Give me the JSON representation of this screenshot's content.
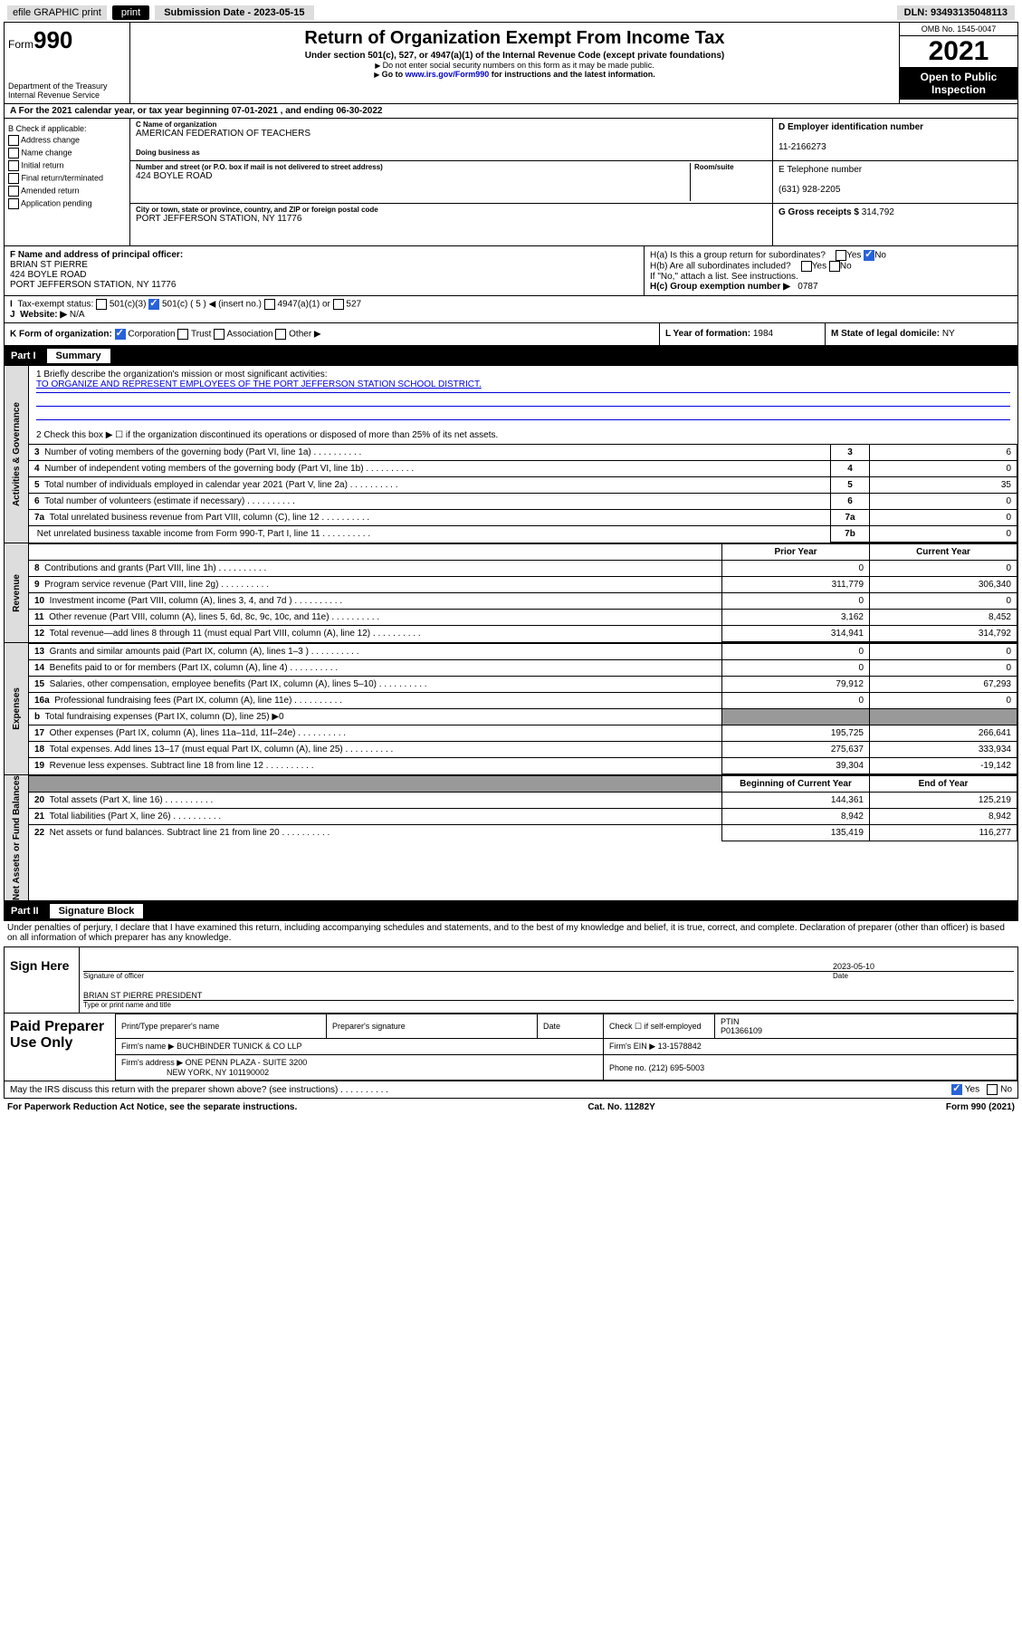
{
  "top": {
    "efile": "efile GRAPHIC print",
    "submission_label": "Submission Date - 2023-05-15",
    "dln": "DLN: 93493135048113"
  },
  "header": {
    "form_prefix": "Form",
    "form_num": "990",
    "dept": "Department of the Treasury Internal Revenue Service",
    "title": "Return of Organization Exempt From Income Tax",
    "sub": "Under section 501(c), 527, or 4947(a)(1) of the Internal Revenue Code (except private foundations)",
    "note1": "Do not enter social security numbers on this form as it may be made public.",
    "note2_pre": "Go to ",
    "note2_link": "www.irs.gov/Form990",
    "note2_post": " for instructions and the latest information.",
    "omb": "OMB No. 1545-0047",
    "year": "2021",
    "open": "Open to Public Inspection"
  },
  "row_a": "A For the 2021 calendar year, or tax year beginning 07-01-2021  , and ending 06-30-2022",
  "box_b": {
    "title": "B Check if applicable:",
    "items": [
      "Address change",
      "Name change",
      "Initial return",
      "Final return/terminated",
      "Amended return",
      "Application pending"
    ]
  },
  "box_c": {
    "name_label": "C Name of organization",
    "name": "AMERICAN FEDERATION OF TEACHERS",
    "dba_label": "Doing business as",
    "dba": "",
    "street_label": "Number and street (or P.O. box if mail is not delivered to street address)",
    "room_label": "Room/suite",
    "street": "424 BOYLE ROAD",
    "city_label": "City or town, state or province, country, and ZIP or foreign postal code",
    "city": "PORT JEFFERSON STATION, NY  11776"
  },
  "box_d": {
    "label": "D Employer identification number",
    "value": "11-2166273"
  },
  "box_e": {
    "label": "E Telephone number",
    "value": "(631) 928-2205"
  },
  "box_g": {
    "label": "G Gross receipts $",
    "value": "314,792"
  },
  "box_f": {
    "label": "F  Name and address of principal officer:",
    "name": "BRIAN ST PIERRE",
    "addr1": "424 BOYLE ROAD",
    "addr2": "PORT JEFFERSON STATION, NY  11776"
  },
  "box_h": {
    "ha": "H(a)  Is this a group return for subordinates?",
    "hb": "H(b)  Are all subordinates included?",
    "hnote": "If \"No,\" attach a list. See instructions.",
    "hc_label": "H(c)  Group exemption number ▶",
    "hc_val": "0787"
  },
  "row_i": {
    "label": "Tax-exempt status:",
    "opts": [
      "501(c)(3)",
      "501(c) ( 5 ) ◀ (insert no.)",
      "4947(a)(1) or",
      "527"
    ]
  },
  "row_j": {
    "label": "Website: ▶",
    "val": "N/A"
  },
  "row_k": {
    "label": "K Form of organization:",
    "opts": [
      "Corporation",
      "Trust",
      "Association",
      "Other ▶"
    ]
  },
  "row_l": {
    "label": "L Year of formation:",
    "val": "1984"
  },
  "row_m": {
    "label": "M State of legal domicile:",
    "val": "NY"
  },
  "part1": {
    "header_num": "Part I",
    "header_title": "Summary",
    "q1": "1  Briefly describe the organization's mission or most significant activities:",
    "mission": "TO ORGANIZE AND REPRESENT EMPLOYEES OF THE PORT JEFFERSON STATION SCHOOL DISTRICT.",
    "q2": "2    Check this box ▶ ☐  if the organization discontinued its operations or disposed of more than 25% of its net assets."
  },
  "governance_lines": [
    {
      "n": "3",
      "t": "Number of voting members of the governing body (Part VI, line 1a)",
      "c": "3",
      "v": "6"
    },
    {
      "n": "4",
      "t": "Number of independent voting members of the governing body (Part VI, line 1b)",
      "c": "4",
      "v": "0"
    },
    {
      "n": "5",
      "t": "Total number of individuals employed in calendar year 2021 (Part V, line 2a)",
      "c": "5",
      "v": "35"
    },
    {
      "n": "6",
      "t": "Total number of volunteers (estimate if necessary)",
      "c": "6",
      "v": "0"
    },
    {
      "n": "7a",
      "t": "Total unrelated business revenue from Part VIII, column (C), line 12",
      "c": "7a",
      "v": "0"
    },
    {
      "n": "",
      "t": "Net unrelated business taxable income from Form 990-T, Part I, line 11",
      "c": "7b",
      "v": "0"
    }
  ],
  "two_col_headers": {
    "prior": "Prior Year",
    "current": "Current Year",
    "boy": "Beginning of Current Year",
    "eoy": "End of Year"
  },
  "revenue_lines": [
    {
      "n": "8",
      "t": "Contributions and grants (Part VIII, line 1h)",
      "p": "0",
      "c": "0"
    },
    {
      "n": "9",
      "t": "Program service revenue (Part VIII, line 2g)",
      "p": "311,779",
      "c": "306,340"
    },
    {
      "n": "10",
      "t": "Investment income (Part VIII, column (A), lines 3, 4, and 7d )",
      "p": "0",
      "c": "0"
    },
    {
      "n": "11",
      "t": "Other revenue (Part VIII, column (A), lines 5, 6d, 8c, 9c, 10c, and 11e)",
      "p": "3,162",
      "c": "8,452"
    },
    {
      "n": "12",
      "t": "Total revenue—add lines 8 through 11 (must equal Part VIII, column (A), line 12)",
      "p": "314,941",
      "c": "314,792"
    }
  ],
  "expense_lines": [
    {
      "n": "13",
      "t": "Grants and similar amounts paid (Part IX, column (A), lines 1–3 )",
      "p": "0",
      "c": "0"
    },
    {
      "n": "14",
      "t": "Benefits paid to or for members (Part IX, column (A), line 4)",
      "p": "0",
      "c": "0"
    },
    {
      "n": "15",
      "t": "Salaries, other compensation, employee benefits (Part IX, column (A), lines 5–10)",
      "p": "79,912",
      "c": "67,293"
    },
    {
      "n": "16a",
      "t": "Professional fundraising fees (Part IX, column (A), line 11e)",
      "p": "0",
      "c": "0"
    },
    {
      "n": "b",
      "t": "Total fundraising expenses (Part IX, column (D), line 25) ▶0",
      "p": "",
      "c": "",
      "gray": true
    },
    {
      "n": "17",
      "t": "Other expenses (Part IX, column (A), lines 11a–11d, 11f–24e)",
      "p": "195,725",
      "c": "266,641"
    },
    {
      "n": "18",
      "t": "Total expenses. Add lines 13–17 (must equal Part IX, column (A), line 25)",
      "p": "275,637",
      "c": "333,934"
    },
    {
      "n": "19",
      "t": "Revenue less expenses. Subtract line 18 from line 12",
      "p": "39,304",
      "c": "-19,142"
    }
  ],
  "netassets_lines": [
    {
      "n": "20",
      "t": "Total assets (Part X, line 16)",
      "p": "144,361",
      "c": "125,219"
    },
    {
      "n": "21",
      "t": "Total liabilities (Part X, line 26)",
      "p": "8,942",
      "c": "8,942"
    },
    {
      "n": "22",
      "t": "Net assets or fund balances. Subtract line 21 from line 20",
      "p": "135,419",
      "c": "116,277"
    }
  ],
  "part2": {
    "header_num": "Part II",
    "header_title": "Signature Block"
  },
  "penalties": "Under penalties of perjury, I declare that I have examined this return, including accompanying schedules and statements, and to the best of my knowledge and belief, it is true, correct, and complete. Declaration of preparer (other than officer) is based on all information of which preparer has any knowledge.",
  "sign": {
    "label": "Sign Here",
    "sig_label": "Signature of officer",
    "date_label": "Date",
    "date": "2023-05-10",
    "name": "BRIAN ST PIERRE PRESIDENT",
    "name_label": "Type or print name and title"
  },
  "paid": {
    "label": "Paid Preparer Use Only",
    "h1": "Print/Type preparer's name",
    "h2": "Preparer's signature",
    "h3": "Date",
    "h4": "Check ☐ if self-employed",
    "h5_label": "PTIN",
    "h5": "P01366109",
    "firm_label": "Firm's name    ▶",
    "firm": "BUCHBINDER TUNICK & CO LLP",
    "ein_label": "Firm's EIN ▶",
    "ein": "13-1578842",
    "addr_label": "Firm's address ▶",
    "addr1": "ONE PENN PLAZA - SUITE 3200",
    "addr2": "NEW YORK, NY  101190002",
    "phone_label": "Phone no.",
    "phone": "(212) 695-5003"
  },
  "may_irs": "May the IRS discuss this return with the preparer shown above? (see instructions)",
  "footer": {
    "left": "For Paperwork Reduction Act Notice, see the separate instructions.",
    "mid": "Cat. No. 11282Y",
    "right": "Form 990 (2021)"
  },
  "colors": {
    "blue": "#2962d9",
    "link": "#0000cc",
    "gray": "#ddd"
  }
}
